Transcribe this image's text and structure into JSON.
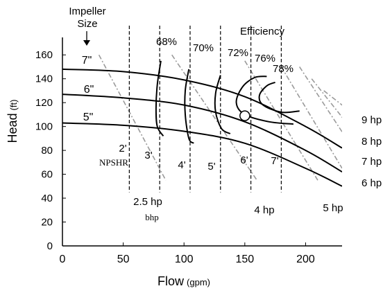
{
  "chart_data": {
    "type": "line",
    "title": "",
    "xlabel": "Flow",
    "xlabel_unit": "(gpm)",
    "ylabel": "Head",
    "ylabel_unit": "(ft)",
    "xlim": [
      0,
      230
    ],
    "ylim": [
      0,
      170
    ],
    "x_ticks": [
      0,
      50,
      100,
      150,
      200
    ],
    "y_ticks": [
      0,
      20,
      40,
      60,
      80,
      100,
      120,
      140,
      160
    ],
    "grid": false,
    "impeller_header": [
      "Impeller",
      "Size"
    ],
    "impeller_curves": [
      {
        "name": "7\"",
        "points": [
          [
            0,
            148
          ],
          [
            50,
            146
          ],
          [
            100,
            139
          ],
          [
            150,
            125
          ],
          [
            200,
            100
          ],
          [
            230,
            82
          ]
        ]
      },
      {
        "name": "6\"",
        "points": [
          [
            0,
            127
          ],
          [
            50,
            124
          ],
          [
            100,
            118
          ],
          [
            150,
            104
          ],
          [
            200,
            80
          ],
          [
            230,
            62
          ]
        ]
      },
      {
        "name": "5\"",
        "points": [
          [
            0,
            103
          ],
          [
            50,
            101
          ],
          [
            100,
            96
          ],
          [
            150,
            86
          ],
          [
            200,
            65
          ],
          [
            230,
            50
          ]
        ]
      }
    ],
    "efficiency_labels": [
      "68%",
      "70%",
      "72%",
      "76%",
      "78%"
    ],
    "efficiency_curves": [
      {
        "label": "68%",
        "points": [
          [
            81,
            155
          ],
          [
            78,
            135
          ],
          [
            77,
            115
          ],
          [
            78,
            100
          ],
          [
            83,
            92
          ]
        ]
      },
      {
        "label": "70%",
        "points": [
          [
            104,
            148
          ],
          [
            101,
            130
          ],
          [
            101,
            110
          ],
          [
            104,
            90
          ],
          [
            108,
            86
          ]
        ]
      },
      {
        "label": "72%",
        "points": [
          [
            130,
            143
          ],
          [
            126,
            128
          ],
          [
            126,
            112
          ],
          [
            131,
            98
          ],
          [
            138,
            94
          ]
        ]
      },
      {
        "label": "76%",
        "points": [
          [
            190,
            102
          ],
          [
            170,
            104
          ],
          [
            150,
            110
          ],
          [
            143,
            120
          ],
          [
            148,
            133
          ],
          [
            158,
            141
          ],
          [
            168,
            142
          ]
        ]
      },
      {
        "label": "78%",
        "points": [
          [
            195,
            113
          ],
          [
            180,
            112
          ],
          [
            165,
            118
          ],
          [
            162,
            126
          ],
          [
            168,
            134
          ],
          [
            175,
            137
          ]
        ]
      }
    ],
    "best_efficiency_point": [
      150,
      109
    ],
    "npshr_label": "NPSHR",
    "npshr_lines": [
      {
        "label": "2'",
        "flow": 55
      },
      {
        "label": "3'",
        "flow": 80
      },
      {
        "label": "4'",
        "flow": 105
      },
      {
        "label": "5'",
        "flow": 130
      },
      {
        "label": "6'",
        "flow": 155
      },
      {
        "label": "7'",
        "flow": 180
      }
    ],
    "bhp_curves": [
      {
        "label": "2.5 hp",
        "points": [
          [
            30,
            160
          ],
          [
            85,
            55
          ]
        ]
      },
      {
        "label": "4 hp",
        "points": [
          [
            90,
            160
          ],
          [
            160,
            55
          ]
        ]
      },
      {
        "label": "5 hp",
        "points": [
          [
            150,
            155
          ],
          [
            210,
            55
          ]
        ]
      },
      {
        "label": "6 hp",
        "points": [
          [
            180,
            150
          ],
          [
            230,
            65
          ]
        ]
      },
      {
        "label": "7 hp",
        "points": [
          [
            195,
            150
          ],
          [
            240,
            80
          ]
        ]
      },
      {
        "label": "8 hp",
        "points": [
          [
            205,
            140
          ],
          [
            240,
            95
          ]
        ]
      },
      {
        "label": "9 hp",
        "points": [
          [
            215,
            130
          ],
          [
            240,
            110
          ]
        ]
      }
    ],
    "bhp_caption": "bhp",
    "efficiency_header": "Efficiency",
    "colors": {
      "curves": "#000000",
      "npshr": "#000000",
      "bhp": "#9a9a9a"
    }
  }
}
